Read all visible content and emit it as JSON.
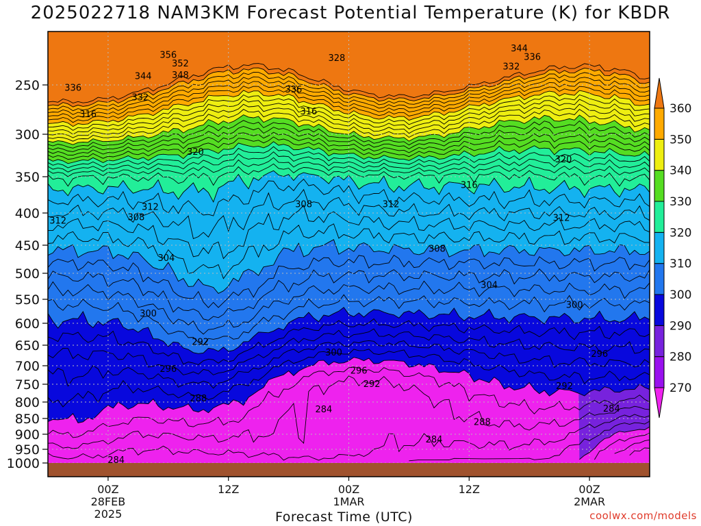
{
  "title": "2025022718 NAM3KM Forecast Potential Temperature (K) for KBDR",
  "credit": "coolwx.com/models",
  "colors": {
    "ground": "#a0522d",
    "grid": "#9a9a9a"
  },
  "chart_data": {
    "type": "heatmap",
    "title": "2025022718 NAM3KM Forecast Potential Temperature (K) for KBDR",
    "xlabel": "Forecast Time (UTC)",
    "ylabel": "",
    "x_ticks": [
      {
        "hour": 6,
        "lines": [
          "00Z",
          "28FEB",
          "2025"
        ]
      },
      {
        "hour": 18,
        "lines": [
          "12Z"
        ]
      },
      {
        "hour": 30,
        "lines": [
          "00Z",
          "1MAR"
        ]
      },
      {
        "hour": 42,
        "lines": [
          "12Z"
        ]
      },
      {
        "hour": 54,
        "lines": [
          "00Z",
          "2MAR"
        ]
      }
    ],
    "y_ticks": [
      250,
      300,
      350,
      400,
      450,
      500,
      550,
      600,
      650,
      700,
      750,
      800,
      850,
      900,
      950,
      1000
    ],
    "xlim_hours": [
      0,
      60
    ],
    "ylim_hPa": [
      1000,
      200
    ],
    "grid": true,
    "colorbar": {
      "levels": [
        270,
        280,
        290,
        300,
        310,
        320,
        330,
        340,
        350,
        360
      ],
      "colors": [
        "#ee22ee",
        "#9911ee",
        "#7722dd",
        "#0808dd",
        "#2277ee",
        "#14b2f0",
        "#22ee99",
        "#55dd22",
        "#eeee11",
        "#ffaa00",
        "#ee7711"
      ]
    },
    "isotherm_labels": [
      {
        "t": 12.0,
        "p": 222,
        "label": "356"
      },
      {
        "t": 13.2,
        "p": 230,
        "label": "352"
      },
      {
        "t": 13.2,
        "p": 241,
        "label": "348"
      },
      {
        "t": 9.5,
        "p": 242,
        "label": "344"
      },
      {
        "t": 2.5,
        "p": 253,
        "label": "336"
      },
      {
        "t": 9.2,
        "p": 263,
        "label": "332"
      },
      {
        "t": 24.5,
        "p": 255,
        "label": "336"
      },
      {
        "t": 28.8,
        "p": 225,
        "label": "328"
      },
      {
        "t": 47.0,
        "p": 216,
        "label": "344"
      },
      {
        "t": 48.3,
        "p": 224,
        "label": "336"
      },
      {
        "t": 46.2,
        "p": 233,
        "label": "332"
      },
      {
        "t": 4.0,
        "p": 280,
        "label": "316"
      },
      {
        "t": 26.0,
        "p": 277,
        "label": "316"
      },
      {
        "t": 14.7,
        "p": 321,
        "label": "320"
      },
      {
        "t": 51.4,
        "p": 330,
        "label": "320"
      },
      {
        "t": 1.0,
        "p": 412,
        "label": "312"
      },
      {
        "t": 10.2,
        "p": 392,
        "label": "312"
      },
      {
        "t": 8.8,
        "p": 407,
        "label": "308"
      },
      {
        "t": 25.5,
        "p": 388,
        "label": "308"
      },
      {
        "t": 34.2,
        "p": 388,
        "label": "312"
      },
      {
        "t": 42.0,
        "p": 362,
        "label": "316"
      },
      {
        "t": 51.2,
        "p": 408,
        "label": "312"
      },
      {
        "t": 38.8,
        "p": 457,
        "label": "308"
      },
      {
        "t": 11.8,
        "p": 473,
        "label": "304"
      },
      {
        "t": 44.0,
        "p": 523,
        "label": "304"
      },
      {
        "t": 15.2,
        "p": 643,
        "label": "292"
      },
      {
        "t": 10.0,
        "p": 580,
        "label": "300"
      },
      {
        "t": 12.0,
        "p": 709,
        "label": "296"
      },
      {
        "t": 52.5,
        "p": 562,
        "label": "300"
      },
      {
        "t": 28.5,
        "p": 668,
        "label": "300"
      },
      {
        "t": 31.0,
        "p": 714,
        "label": "296"
      },
      {
        "t": 32.3,
        "p": 750,
        "label": "292"
      },
      {
        "t": 55.0,
        "p": 672,
        "label": "296"
      },
      {
        "t": 51.5,
        "p": 756,
        "label": "292"
      },
      {
        "t": 15.0,
        "p": 790,
        "label": "288"
      },
      {
        "t": 27.5,
        "p": 823,
        "label": "284"
      },
      {
        "t": 43.3,
        "p": 862,
        "label": "288"
      },
      {
        "t": 56.2,
        "p": 821,
        "label": "284"
      },
      {
        "t": 38.5,
        "p": 918,
        "label": "284"
      },
      {
        "t": 6.8,
        "p": 990,
        "label": "284"
      }
    ]
  }
}
